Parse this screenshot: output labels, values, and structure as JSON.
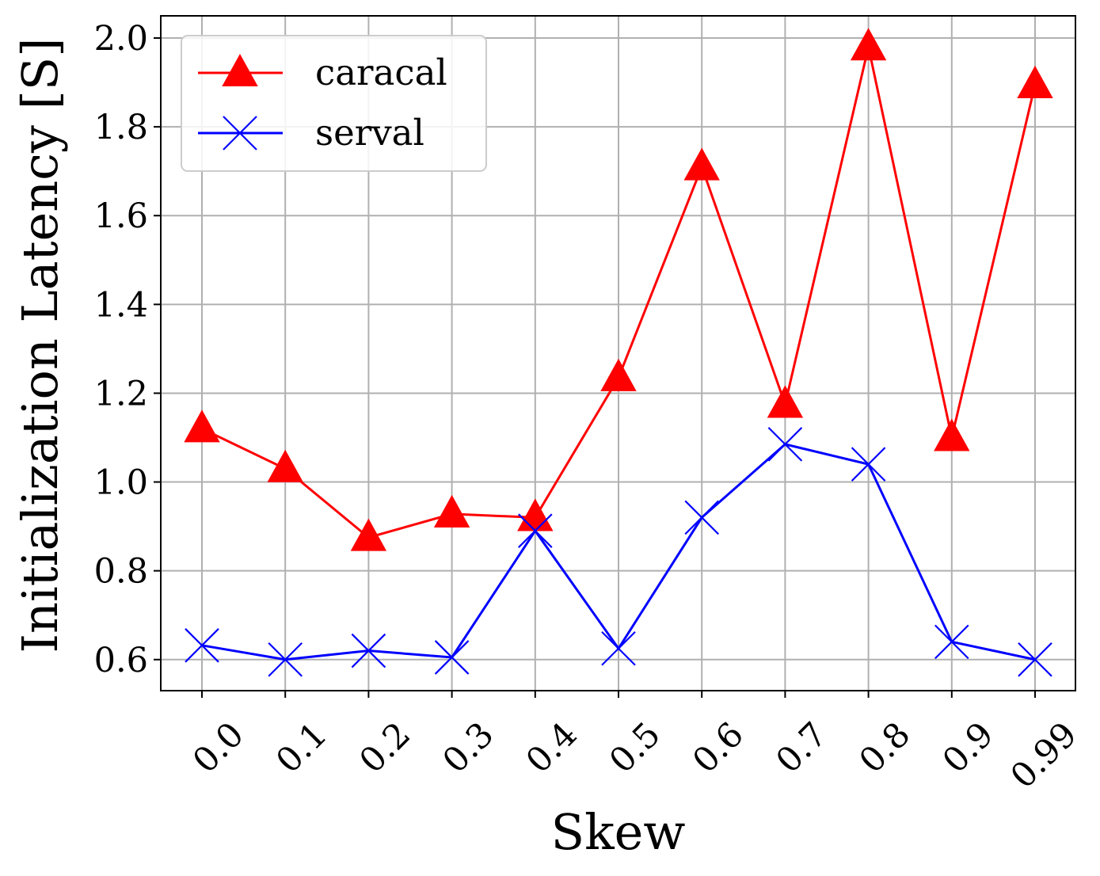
{
  "chart_data": {
    "type": "line",
    "title": "",
    "xlabel": "Skew",
    "ylabel": "Initialization Latency [S]",
    "categories": [
      "0.0",
      "0.1",
      "0.2",
      "0.3",
      "0.4",
      "0.5",
      "0.6",
      "0.7",
      "0.8",
      "0.9",
      "0.99"
    ],
    "ylim": [
      0.53,
      2.05
    ],
    "yticks": [
      "0.6",
      "0.8",
      "1.0",
      "1.2",
      "1.4",
      "1.6",
      "1.8",
      "2.0"
    ],
    "grid": true,
    "legend_position": "top-left",
    "series": [
      {
        "name": "caracal",
        "color": "#ff0000",
        "marker": "triangle",
        "values": [
          1.12,
          1.03,
          0.875,
          0.928,
          0.92,
          1.235,
          1.71,
          1.175,
          1.98,
          1.1,
          1.895
        ]
      },
      {
        "name": "serval",
        "color": "#0000ff",
        "marker": "x",
        "values": [
          0.632,
          0.6,
          0.62,
          0.605,
          0.89,
          0.625,
          0.92,
          1.085,
          1.04,
          0.64,
          0.6
        ]
      }
    ]
  }
}
